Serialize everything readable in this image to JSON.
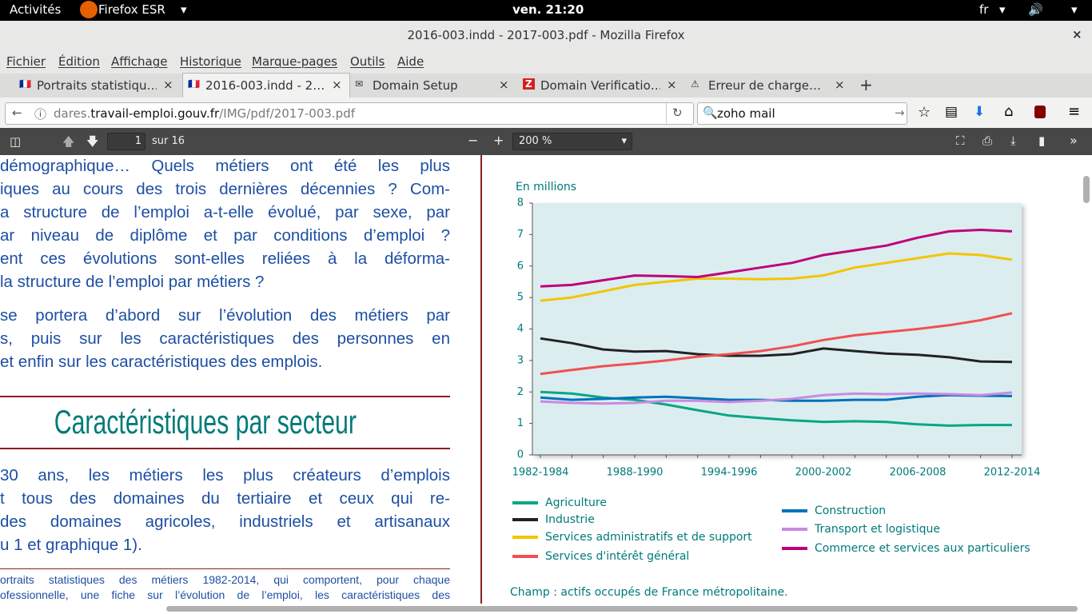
{
  "system_bar": {
    "activities": "Activités",
    "app": "Firefox ESR",
    "clock": "ven. 21:20",
    "lang": "fr"
  },
  "window": {
    "title": "2016-003.indd - 2017-003.pdf - Mozilla Firefox",
    "menu": [
      "Fichier",
      "Édition",
      "Affichage",
      "Historique",
      "Marque-pages",
      "Outils",
      "Aide"
    ],
    "tabs": [
      "Portraits statistiqu…",
      "2016-003.indd - 2…",
      "Domain Setup",
      "Domain Verificatio…",
      "Erreur de charge…"
    ],
    "url": {
      "prefix": "dares.",
      "host": "travail-emploi.gouv.fr",
      "path": "/IMG/pdf/2017-003.pdf"
    },
    "search": "zoho mail"
  },
  "pdf_toolbar": {
    "page": "1",
    "page_count": "sur 16",
    "zoom": "200 %"
  },
  "document": {
    "paragraphs": [
      [
        "démographique… Quels métiers ont été les plus",
        "iques au cours des trois dernières décennies ? Com-",
        "a structure de l’emploi a-t-elle évolué, par sexe, par",
        "ar niveau de diplôme et par conditions d’emploi ?",
        "ent ces évolutions sont-elles reliées à la déforma-",
        "la structure de l’emploi par métiers ?"
      ],
      [
        "se portera d’abord sur l’évolution des métiers par",
        "s, puis sur les caractéristiques des personnes en",
        "et enfin sur les caractéristiques des emplois."
      ]
    ],
    "heading": "Caractéristiques par secteur",
    "section": [
      "30 ans, les métiers les plus créateurs d’emplois",
      "t tous des domaines du tertiaire et ceux qui re-",
      "des domaines agricoles, industriels et artisanaux",
      "u 1 et graphique 1)."
    ],
    "footnote": [
      "ortraits statistiques des métiers 1982-2014, qui comportent, pour chaque",
      "ofessionnelle, une fiche sur l’évolution de l’emploi, les caractéristiques des"
    ]
  },
  "chart_data": {
    "type": "line",
    "y_label": "En millions",
    "categories": [
      "1982-1984",
      null,
      null,
      "1988-1990",
      null,
      null,
      "1994-1996",
      null,
      null,
      "2000-2002",
      null,
      null,
      "2006-2008",
      null,
      null,
      "2012-2014"
    ],
    "series": [
      {
        "name": "Agriculture",
        "color": "#00a884",
        "values": [
          2.0,
          1.95,
          1.82,
          1.75,
          1.6,
          1.42,
          1.25,
          1.17,
          1.1,
          1.05,
          1.07,
          1.05,
          0.97,
          0.93,
          0.95,
          0.95
        ]
      },
      {
        "name": "Industrie",
        "color": "#222222",
        "values": [
          3.7,
          3.55,
          3.35,
          3.28,
          3.3,
          3.2,
          3.15,
          3.15,
          3.2,
          3.38,
          3.3,
          3.22,
          3.18,
          3.1,
          2.97,
          2.95
        ]
      },
      {
        "name": "Services administratifs et de support",
        "color": "#f2c500",
        "values": [
          4.9,
          5.0,
          5.2,
          5.4,
          5.5,
          5.6,
          5.6,
          5.58,
          5.6,
          5.7,
          5.95,
          6.1,
          6.25,
          6.4,
          6.35,
          6.2
        ]
      },
      {
        "name": "Services d'intérêt général",
        "color": "#f05050",
        "values": [
          2.57,
          2.7,
          2.82,
          2.9,
          3.0,
          3.12,
          3.2,
          3.3,
          3.45,
          3.65,
          3.8,
          3.9,
          4.0,
          4.12,
          4.28,
          4.5
        ]
      },
      {
        "name": "Construction",
        "color": "#0072bb",
        "values": [
          1.82,
          1.75,
          1.78,
          1.82,
          1.85,
          1.8,
          1.75,
          1.75,
          1.72,
          1.72,
          1.75,
          1.75,
          1.85,
          1.9,
          1.88,
          1.87
        ]
      },
      {
        "name": "Transport et logistique",
        "color": "#c88be0",
        "values": [
          1.7,
          1.65,
          1.63,
          1.65,
          1.72,
          1.72,
          1.68,
          1.72,
          1.78,
          1.9,
          1.95,
          1.93,
          1.95,
          1.93,
          1.9,
          1.98
        ]
      },
      {
        "name": "Commerce et services aux particuliers",
        "color": "#c0007a",
        "values": [
          5.35,
          5.4,
          5.55,
          5.7,
          5.68,
          5.65,
          5.8,
          5.95,
          6.1,
          6.35,
          6.5,
          6.65,
          6.9,
          7.1,
          7.15,
          7.1
        ]
      }
    ],
    "ylim": [
      0,
      8
    ],
    "yticks": [
      0,
      1,
      2,
      3,
      4,
      5,
      6,
      7,
      8
    ],
    "note": "Champ : actifs occupés de France métropolitaine."
  }
}
